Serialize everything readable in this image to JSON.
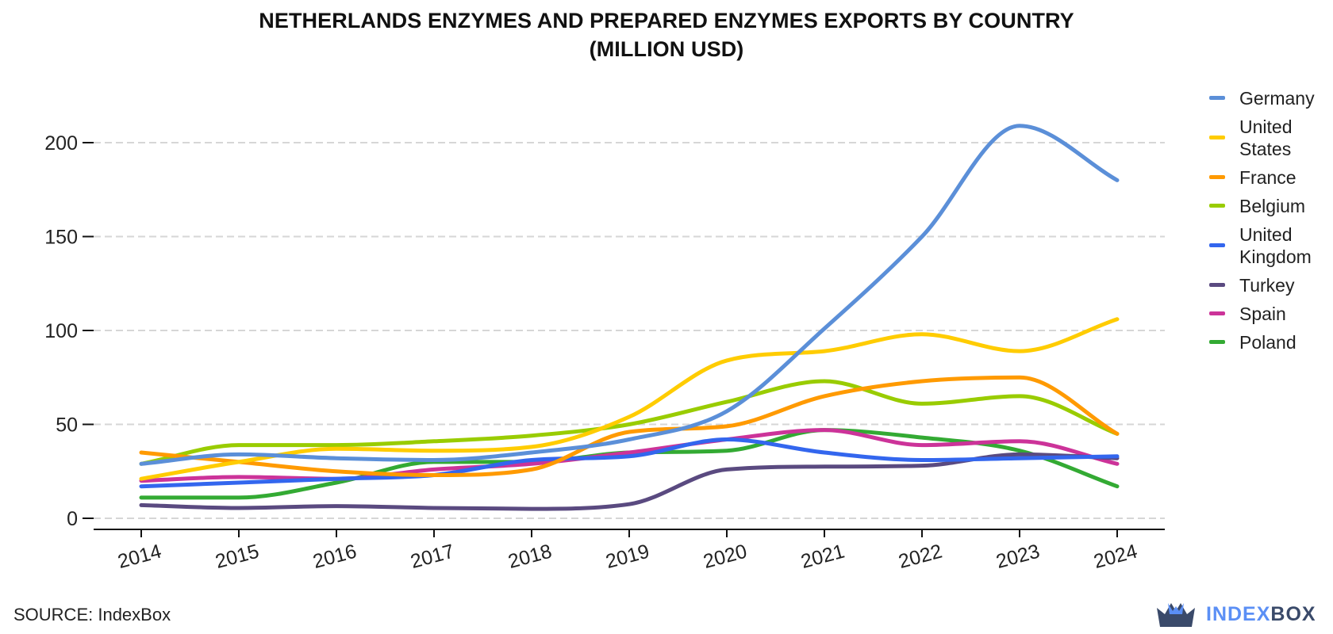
{
  "title_line1": "NETHERLANDS ENZYMES AND PREPARED ENZYMES EXPORTS BY COUNTRY",
  "title_line2": "(MILLION USD)",
  "source": "SOURCE: IndexBox",
  "logo": {
    "part1": "INDEX",
    "part2": "BOX",
    "icon": "crown-box-icon"
  },
  "chart_data": {
    "type": "line",
    "title": "NETHERLANDS ENZYMES AND PREPARED ENZYMES EXPORTS BY COUNTRY (MILLION USD)",
    "x": [
      "2014",
      "2015",
      "2016",
      "2017",
      "2018",
      "2019",
      "2020",
      "2021",
      "2022",
      "2023",
      "2024"
    ],
    "xlabel": "",
    "ylabel": "",
    "ylim": [
      0,
      210
    ],
    "yticks": [
      0,
      50,
      100,
      150,
      200
    ],
    "grid": "horizontal-dashed",
    "legend_position": "right",
    "series": [
      {
        "name": "Germany",
        "color": "#5b8fd8",
        "values": [
          29,
          34,
          32,
          31,
          35,
          42,
          57,
          101,
          150,
          209,
          180
        ]
      },
      {
        "name": "United States",
        "color": "#ffcc00",
        "values": [
          21,
          30,
          37,
          36,
          38,
          54,
          84,
          89,
          98,
          89,
          106
        ]
      },
      {
        "name": "France",
        "color": "#ff9a00",
        "values": [
          35,
          30,
          25,
          23,
          26,
          46,
          49,
          65,
          73,
          75,
          45
        ]
      },
      {
        "name": "Belgium",
        "color": "#99cc00",
        "values": [
          29,
          39,
          39,
          41,
          44,
          50,
          62,
          73,
          61,
          65,
          45
        ]
      },
      {
        "name": "United Kingdom",
        "color": "#3366ee",
        "values": [
          17,
          19,
          21,
          23,
          31,
          33,
          42,
          35,
          31,
          32,
          33
        ]
      },
      {
        "name": "Turkey",
        "color": "#5a4a80",
        "values": [
          7,
          5.5,
          6.5,
          5.5,
          5,
          7.5,
          26,
          27.5,
          28,
          34,
          32
        ]
      },
      {
        "name": "Spain",
        "color": "#cc3399",
        "values": [
          20,
          22,
          21,
          26,
          29,
          35,
          42,
          47,
          39,
          41,
          29
        ]
      },
      {
        "name": "Poland",
        "color": "#33aa33",
        "values": [
          11,
          11,
          19,
          30,
          30,
          35,
          36,
          47,
          43,
          36,
          17
        ]
      }
    ]
  }
}
